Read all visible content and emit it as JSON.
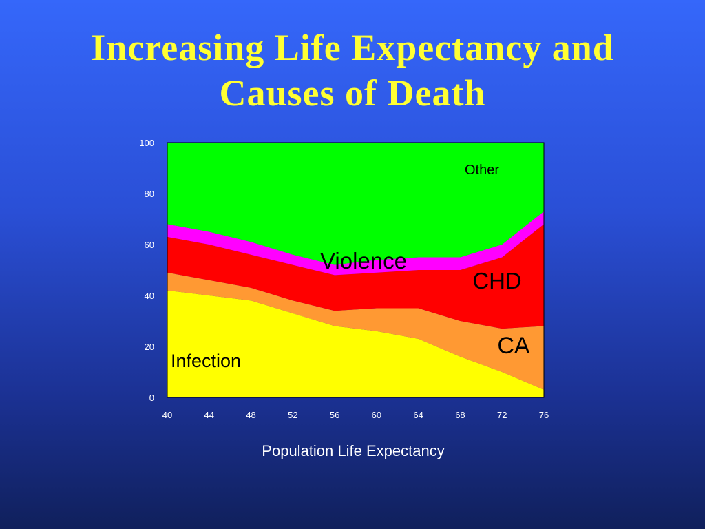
{
  "slide": {
    "title_line1": "Increasing Life Expectancy and",
    "title_line2": "Causes of Death"
  },
  "chart_data": {
    "type": "area",
    "stacked": true,
    "title": "Increasing Life Expectancy and Causes of Death",
    "xlabel": "Population Life Expectancy",
    "ylabel": "",
    "x": [
      40,
      44,
      48,
      52,
      56,
      60,
      64,
      68,
      72,
      76
    ],
    "xlim": [
      40,
      76
    ],
    "ylim": [
      0,
      100
    ],
    "xticks": [
      "40",
      "44",
      "48",
      "52",
      "56",
      "60",
      "64",
      "68",
      "72",
      "76"
    ],
    "yticks": [
      "0",
      "20",
      "40",
      "60",
      "80",
      "100"
    ],
    "grid": false,
    "legend": "none",
    "series": [
      {
        "name": "Infection",
        "color": "#ffff00",
        "values": [
          42,
          40,
          38,
          33,
          28,
          26,
          23,
          16,
          10,
          3
        ]
      },
      {
        "name": "CA",
        "color": "#ff9933",
        "values": [
          7,
          6,
          5,
          5,
          6,
          9,
          12,
          14,
          17,
          25
        ]
      },
      {
        "name": "CHD",
        "color": "#ff0000",
        "values": [
          14,
          14,
          13,
          14,
          14,
          14,
          15,
          20,
          28,
          40
        ]
      },
      {
        "name": "Violence",
        "color": "#ff00ff",
        "values": [
          5,
          5,
          5,
          4,
          4,
          5,
          5,
          5,
          5,
          5
        ]
      },
      {
        "name": "Other",
        "color": "#00ff00",
        "values": [
          32,
          35,
          39,
          44,
          48,
          46,
          45,
          45,
          40,
          27
        ]
      }
    ]
  }
}
